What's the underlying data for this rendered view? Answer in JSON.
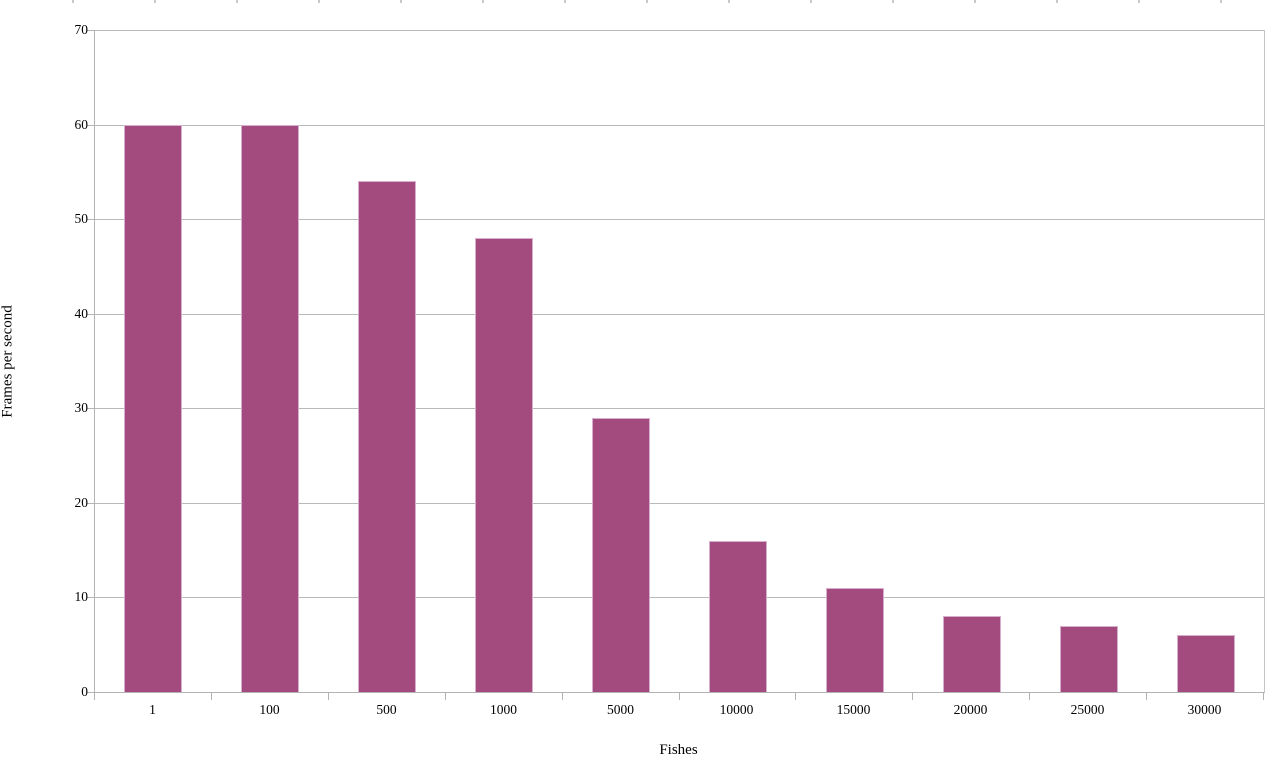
{
  "chart_data": {
    "type": "bar",
    "title": "",
    "xlabel": "Fishes",
    "ylabel": "Frames per second",
    "categories": [
      "1",
      "100",
      "500",
      "1000",
      "5000",
      "10000",
      "15000",
      "20000",
      "25000",
      "30000"
    ],
    "values": [
      60,
      60,
      54,
      48,
      29,
      16,
      11,
      8,
      7,
      6
    ],
    "ylim": [
      0,
      70
    ],
    "ytick_step": 10,
    "ytick_labels": [
      "0",
      "10",
      "20",
      "30",
      "40",
      "50",
      "60",
      "70"
    ],
    "grid": "horizontal",
    "legend": "none",
    "colors": {
      "bar_fill": "#a34b7e",
      "bar_border": "#d7aecb",
      "gridline": "#b9b9b9",
      "axis_line": "#b3b3b3",
      "text": "#000000",
      "background": "#ffffff"
    }
  }
}
